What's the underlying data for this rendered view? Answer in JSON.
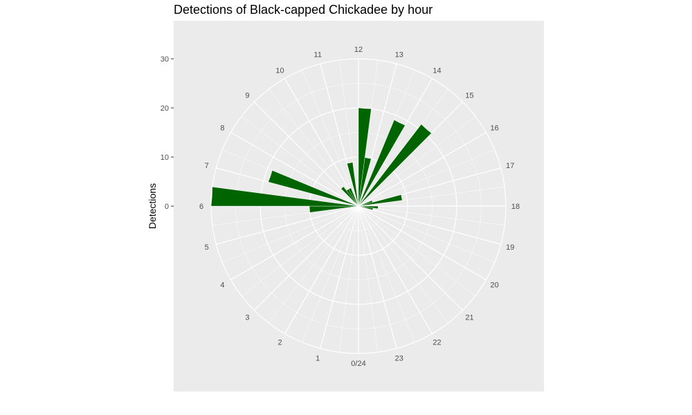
{
  "chart_data": {
    "type": "bar",
    "coord": "polar",
    "title": "Detections of Black-capped Chickadee by hour",
    "ylabel": "Detections",
    "xlabel": "",
    "ylim": [
      0,
      30
    ],
    "yticks": [
      0,
      10,
      20,
      30
    ],
    "grid": true,
    "categories": [
      "0/24",
      "1",
      "2",
      "3",
      "4",
      "5",
      "6",
      "7",
      "8",
      "9",
      "10",
      "11",
      "12",
      "13",
      "14",
      "15",
      "16",
      "17",
      "18",
      "19",
      "20",
      "21",
      "22",
      "23"
    ],
    "values": [
      0,
      0,
      0,
      0,
      0,
      0,
      10,
      30,
      0,
      0,
      0,
      0,
      20,
      0,
      0,
      0,
      0,
      0,
      9,
      0,
      0,
      0,
      0,
      0
    ],
    "bars": [
      {
        "x": 5.75,
        "value": 10
      },
      {
        "x": 6.25,
        "value": 30
      },
      {
        "x": 7.25,
        "value": 19
      },
      {
        "x": 9.25,
        "value": 5
      },
      {
        "x": 9.75,
        "value": 4
      },
      {
        "x": 10.25,
        "value": 4
      },
      {
        "x": 11.25,
        "value": 9
      },
      {
        "x": 12.25,
        "value": 20
      },
      {
        "x": 12.75,
        "value": 10
      },
      {
        "x": 13.75,
        "value": 19
      },
      {
        "x": 14.75,
        "value": 21
      },
      {
        "x": 16.75,
        "value": 3
      },
      {
        "x": 17.25,
        "value": 9
      },
      {
        "x": 18.25,
        "value": 4
      },
      {
        "x": 18.75,
        "value": 3
      }
    ],
    "bar_color": "#006400",
    "panel_color": "#ebebeb",
    "grid_color": "#ffffff"
  }
}
